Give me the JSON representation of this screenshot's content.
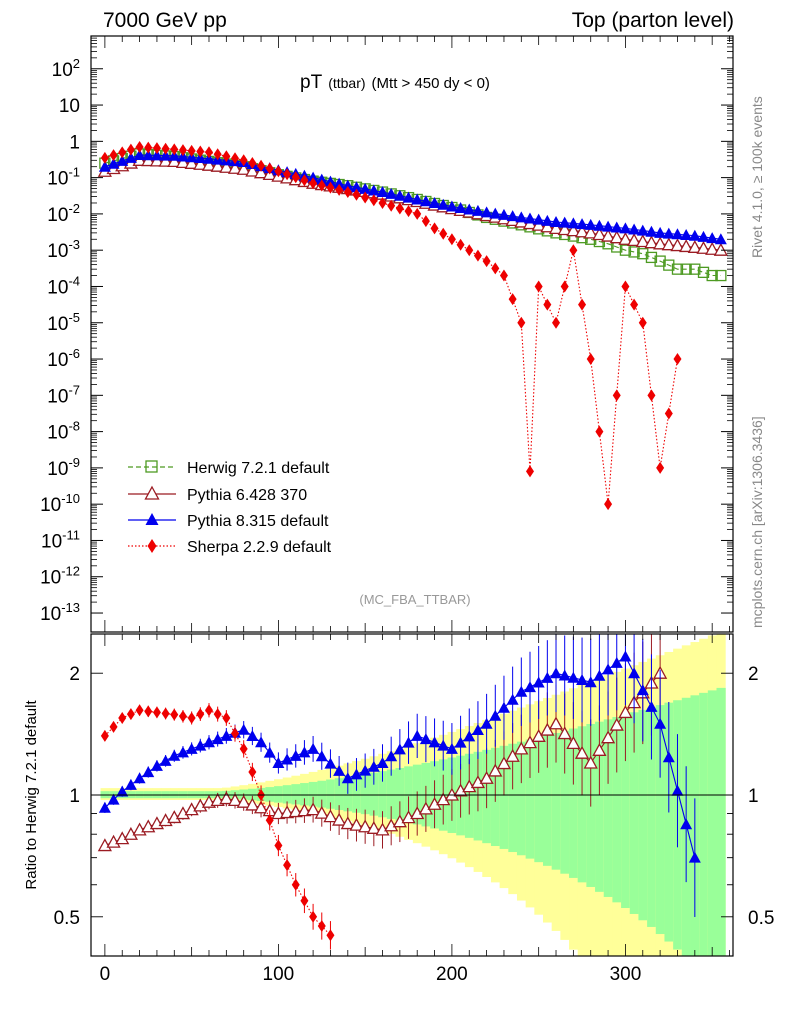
{
  "header": {
    "left": "7000 GeV pp",
    "right": "Top (parton level)"
  },
  "title": {
    "main": "pT",
    "sub": "(ttbar)",
    "cut": "(Mtt > 450 dy < 0)"
  },
  "side_text": {
    "rivet": "Rivet 4.1.0, ≥ 100k events",
    "mcplots": "mcplots.cern.ch [arXiv:1306.3436]"
  },
  "analysis_tag": "(MC_FBA_TTBAR)",
  "colors": {
    "herwig": "#4d9a22",
    "pythia6": "#9b1b22",
    "pythia8": "#0000ee",
    "sherpa": "#ee0000",
    "band_inner": "#99ff99",
    "band_outer": "#ffff99"
  },
  "chart_data": [
    {
      "type": "line",
      "title": "pT (ttbar) (Mtt > 450 dy < 0)",
      "xlabel": "",
      "ylabel": "",
      "yscale": "log",
      "xlim": [
        -8,
        362
      ],
      "ylim": [
        3e-14,
        800
      ],
      "x_ticks": [
        "0",
        "100",
        "200",
        "300"
      ],
      "y_ticks": [
        "10^2",
        "10",
        "1",
        "10^-1",
        "10^-2",
        "10^-3",
        "10^-4",
        "10^-5",
        "10^-6",
        "10^-7",
        "10^-8",
        "10^-9",
        "10^-10",
        "10^-11",
        "10^-12",
        "10^-13"
      ],
      "legend_position": "lower-left",
      "series": [
        {
          "name": "Herwig 7.2.1 default",
          "style": "dashed, open squares",
          "x": [
            0,
            20,
            40,
            60,
            80,
            100,
            120,
            140,
            160,
            180,
            200,
            220,
            240,
            260,
            280,
            290,
            300,
            310,
            320,
            330,
            340,
            350,
            355
          ],
          "values": [
            0.25,
            0.45,
            0.38,
            0.28,
            0.2,
            0.12,
            0.08,
            0.06,
            0.04,
            0.025,
            0.015,
            0.008,
            0.005,
            0.003,
            0.002,
            0.0015,
            0.001,
            0.0008,
            0.0005,
            0.0003,
            0.0003,
            0.0002,
            0.0002
          ]
        },
        {
          "name": "Pythia 6.428 370",
          "style": "solid, open triangles",
          "x": [
            0,
            20,
            40,
            60,
            80,
            100,
            120,
            140,
            160,
            180,
            200,
            220,
            240,
            260,
            280,
            300,
            320,
            340,
            355
          ],
          "values": [
            0.15,
            0.3,
            0.28,
            0.22,
            0.17,
            0.11,
            0.07,
            0.05,
            0.035,
            0.022,
            0.014,
            0.009,
            0.006,
            0.004,
            0.003,
            0.002,
            0.0015,
            0.0012,
            0.001
          ]
        },
        {
          "name": "Pythia 8.315 default",
          "style": "solid, filled triangles",
          "x": [
            0,
            20,
            40,
            60,
            80,
            100,
            120,
            140,
            160,
            180,
            200,
            220,
            240,
            260,
            280,
            300,
            320,
            340,
            355
          ],
          "values": [
            0.2,
            0.42,
            0.4,
            0.33,
            0.27,
            0.16,
            0.1,
            0.06,
            0.04,
            0.025,
            0.016,
            0.011,
            0.008,
            0.006,
            0.005,
            0.004,
            0.003,
            0.0025,
            0.002
          ]
        },
        {
          "name": "Sherpa 2.2.9 default",
          "style": "dotted, filled diamonds",
          "x": [
            0,
            20,
            40,
            60,
            80,
            100,
            120,
            140,
            160,
            180,
            190,
            200,
            210,
            220,
            230,
            240,
            245,
            250,
            260,
            270,
            280,
            290,
            300,
            310,
            320,
            330
          ],
          "values": [
            0.35,
            0.7,
            0.6,
            0.5,
            0.3,
            0.15,
            0.07,
            0.04,
            0.02,
            0.01,
            0.004,
            0.002,
            0.001,
            0.0005,
            0.0002,
            1e-05,
            8e-10,
            0.0001,
            1e-05,
            0.001,
            1e-06,
            1e-10,
            0.0001,
            1e-05,
            1e-09,
            1e-06
          ]
        }
      ]
    },
    {
      "type": "line",
      "title": "",
      "xlabel": "",
      "ylabel": "Ratio to Herwig 7.2.1 default",
      "yscale": "log",
      "xlim": [
        -8,
        362
      ],
      "ylim": [
        0.4,
        2.5
      ],
      "y_ticks": [
        "0.5",
        "1",
        "2"
      ],
      "x_ticks": [
        "0",
        "100",
        "200",
        "300"
      ],
      "reference_line": 1,
      "series": [
        {
          "name": "Pythia 6.428 370",
          "x": [
            0,
            10,
            20,
            30,
            40,
            50,
            60,
            70,
            80,
            90,
            100,
            120,
            140,
            160,
            180,
            200,
            220,
            240,
            260,
            280,
            300,
            320
          ],
          "values": [
            0.75,
            0.78,
            0.82,
            0.85,
            0.88,
            0.92,
            0.96,
            0.98,
            0.96,
            0.93,
            0.9,
            0.92,
            0.85,
            0.82,
            0.9,
            1.0,
            1.1,
            1.3,
            1.5,
            1.2,
            1.6,
            2.0
          ]
        },
        {
          "name": "Pythia 8.315 default",
          "x": [
            0,
            10,
            20,
            30,
            40,
            50,
            60,
            70,
            80,
            90,
            100,
            120,
            140,
            160,
            180,
            200,
            220,
            240,
            260,
            280,
            300,
            320,
            340
          ],
          "values": [
            0.93,
            1.02,
            1.1,
            1.18,
            1.25,
            1.3,
            1.35,
            1.4,
            1.45,
            1.35,
            1.2,
            1.3,
            1.1,
            1.2,
            1.4,
            1.3,
            1.5,
            1.8,
            2.0,
            1.9,
            2.2,
            1.5,
            0.7
          ]
        },
        {
          "name": "Sherpa 2.2.9 default",
          "x": [
            0,
            10,
            20,
            30,
            40,
            50,
            60,
            70,
            80,
            90,
            100,
            110,
            120,
            130
          ],
          "values": [
            1.4,
            1.55,
            1.62,
            1.6,
            1.58,
            1.55,
            1.62,
            1.55,
            1.3,
            1.0,
            0.75,
            0.6,
            0.5,
            0.45
          ]
        }
      ]
    }
  ]
}
